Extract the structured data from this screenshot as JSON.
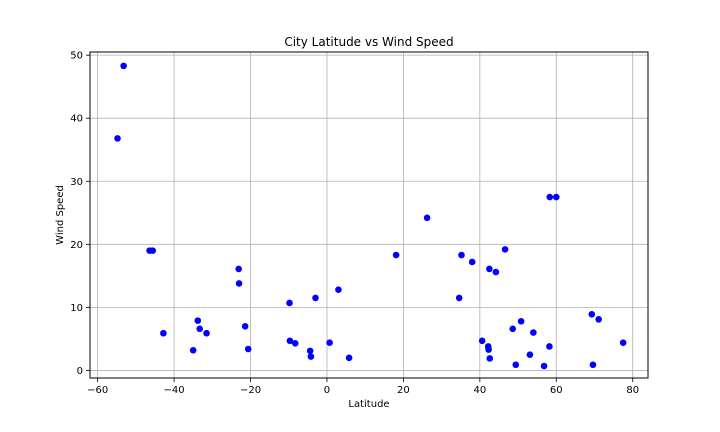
{
  "chart_data": {
    "type": "scatter",
    "title": "City Latitude vs Wind Speed",
    "xlabel": "Latitude",
    "ylabel": "Wind Speed",
    "xlim": [
      -62,
      84
    ],
    "ylim": [
      -1.2,
      50.5
    ],
    "xticks": [
      -60,
      -40,
      -20,
      0,
      20,
      40,
      60,
      80
    ],
    "yticks": [
      0,
      10,
      20,
      30,
      40,
      50
    ],
    "grid": true,
    "marker_color": "#0000ff",
    "points": [
      {
        "x": -54.8,
        "y": 36.8
      },
      {
        "x": -53.2,
        "y": 48.3
      },
      {
        "x": -46.4,
        "y": 19.0
      },
      {
        "x": -45.6,
        "y": 19.0
      },
      {
        "x": -42.8,
        "y": 5.9
      },
      {
        "x": -35.0,
        "y": 3.2
      },
      {
        "x": -33.8,
        "y": 7.9
      },
      {
        "x": -33.3,
        "y": 6.6
      },
      {
        "x": -31.5,
        "y": 5.9
      },
      {
        "x": -23.1,
        "y": 16.1
      },
      {
        "x": -23.0,
        "y": 13.8
      },
      {
        "x": -21.4,
        "y": 7.0
      },
      {
        "x": -20.6,
        "y": 3.4
      },
      {
        "x": -9.8,
        "y": 10.7
      },
      {
        "x": -9.7,
        "y": 4.7
      },
      {
        "x": -8.3,
        "y": 4.3
      },
      {
        "x": -4.4,
        "y": 3.1
      },
      {
        "x": -4.2,
        "y": 2.2
      },
      {
        "x": -3.0,
        "y": 11.5
      },
      {
        "x": 0.7,
        "y": 4.4
      },
      {
        "x": 3.0,
        "y": 12.8
      },
      {
        "x": 5.8,
        "y": 2.0
      },
      {
        "x": 18.1,
        "y": 18.3
      },
      {
        "x": 26.2,
        "y": 24.2
      },
      {
        "x": 34.6,
        "y": 11.5
      },
      {
        "x": 35.2,
        "y": 18.3
      },
      {
        "x": 38.0,
        "y": 17.2
      },
      {
        "x": 40.6,
        "y": 4.7
      },
      {
        "x": 42.2,
        "y": 3.8
      },
      {
        "x": 42.3,
        "y": 3.3
      },
      {
        "x": 42.5,
        "y": 16.1
      },
      {
        "x": 42.6,
        "y": 1.9
      },
      {
        "x": 44.2,
        "y": 15.6
      },
      {
        "x": 46.6,
        "y": 19.2
      },
      {
        "x": 48.6,
        "y": 6.6
      },
      {
        "x": 49.4,
        "y": 0.9
      },
      {
        "x": 50.8,
        "y": 7.8
      },
      {
        "x": 53.1,
        "y": 2.5
      },
      {
        "x": 54.0,
        "y": 6.0
      },
      {
        "x": 56.8,
        "y": 0.7
      },
      {
        "x": 58.2,
        "y": 3.8
      },
      {
        "x": 58.3,
        "y": 27.5
      },
      {
        "x": 60.0,
        "y": 27.5
      },
      {
        "x": 69.3,
        "y": 8.9
      },
      {
        "x": 69.6,
        "y": 0.9
      },
      {
        "x": 71.1,
        "y": 8.1
      },
      {
        "x": 77.5,
        "y": 4.4
      }
    ]
  }
}
